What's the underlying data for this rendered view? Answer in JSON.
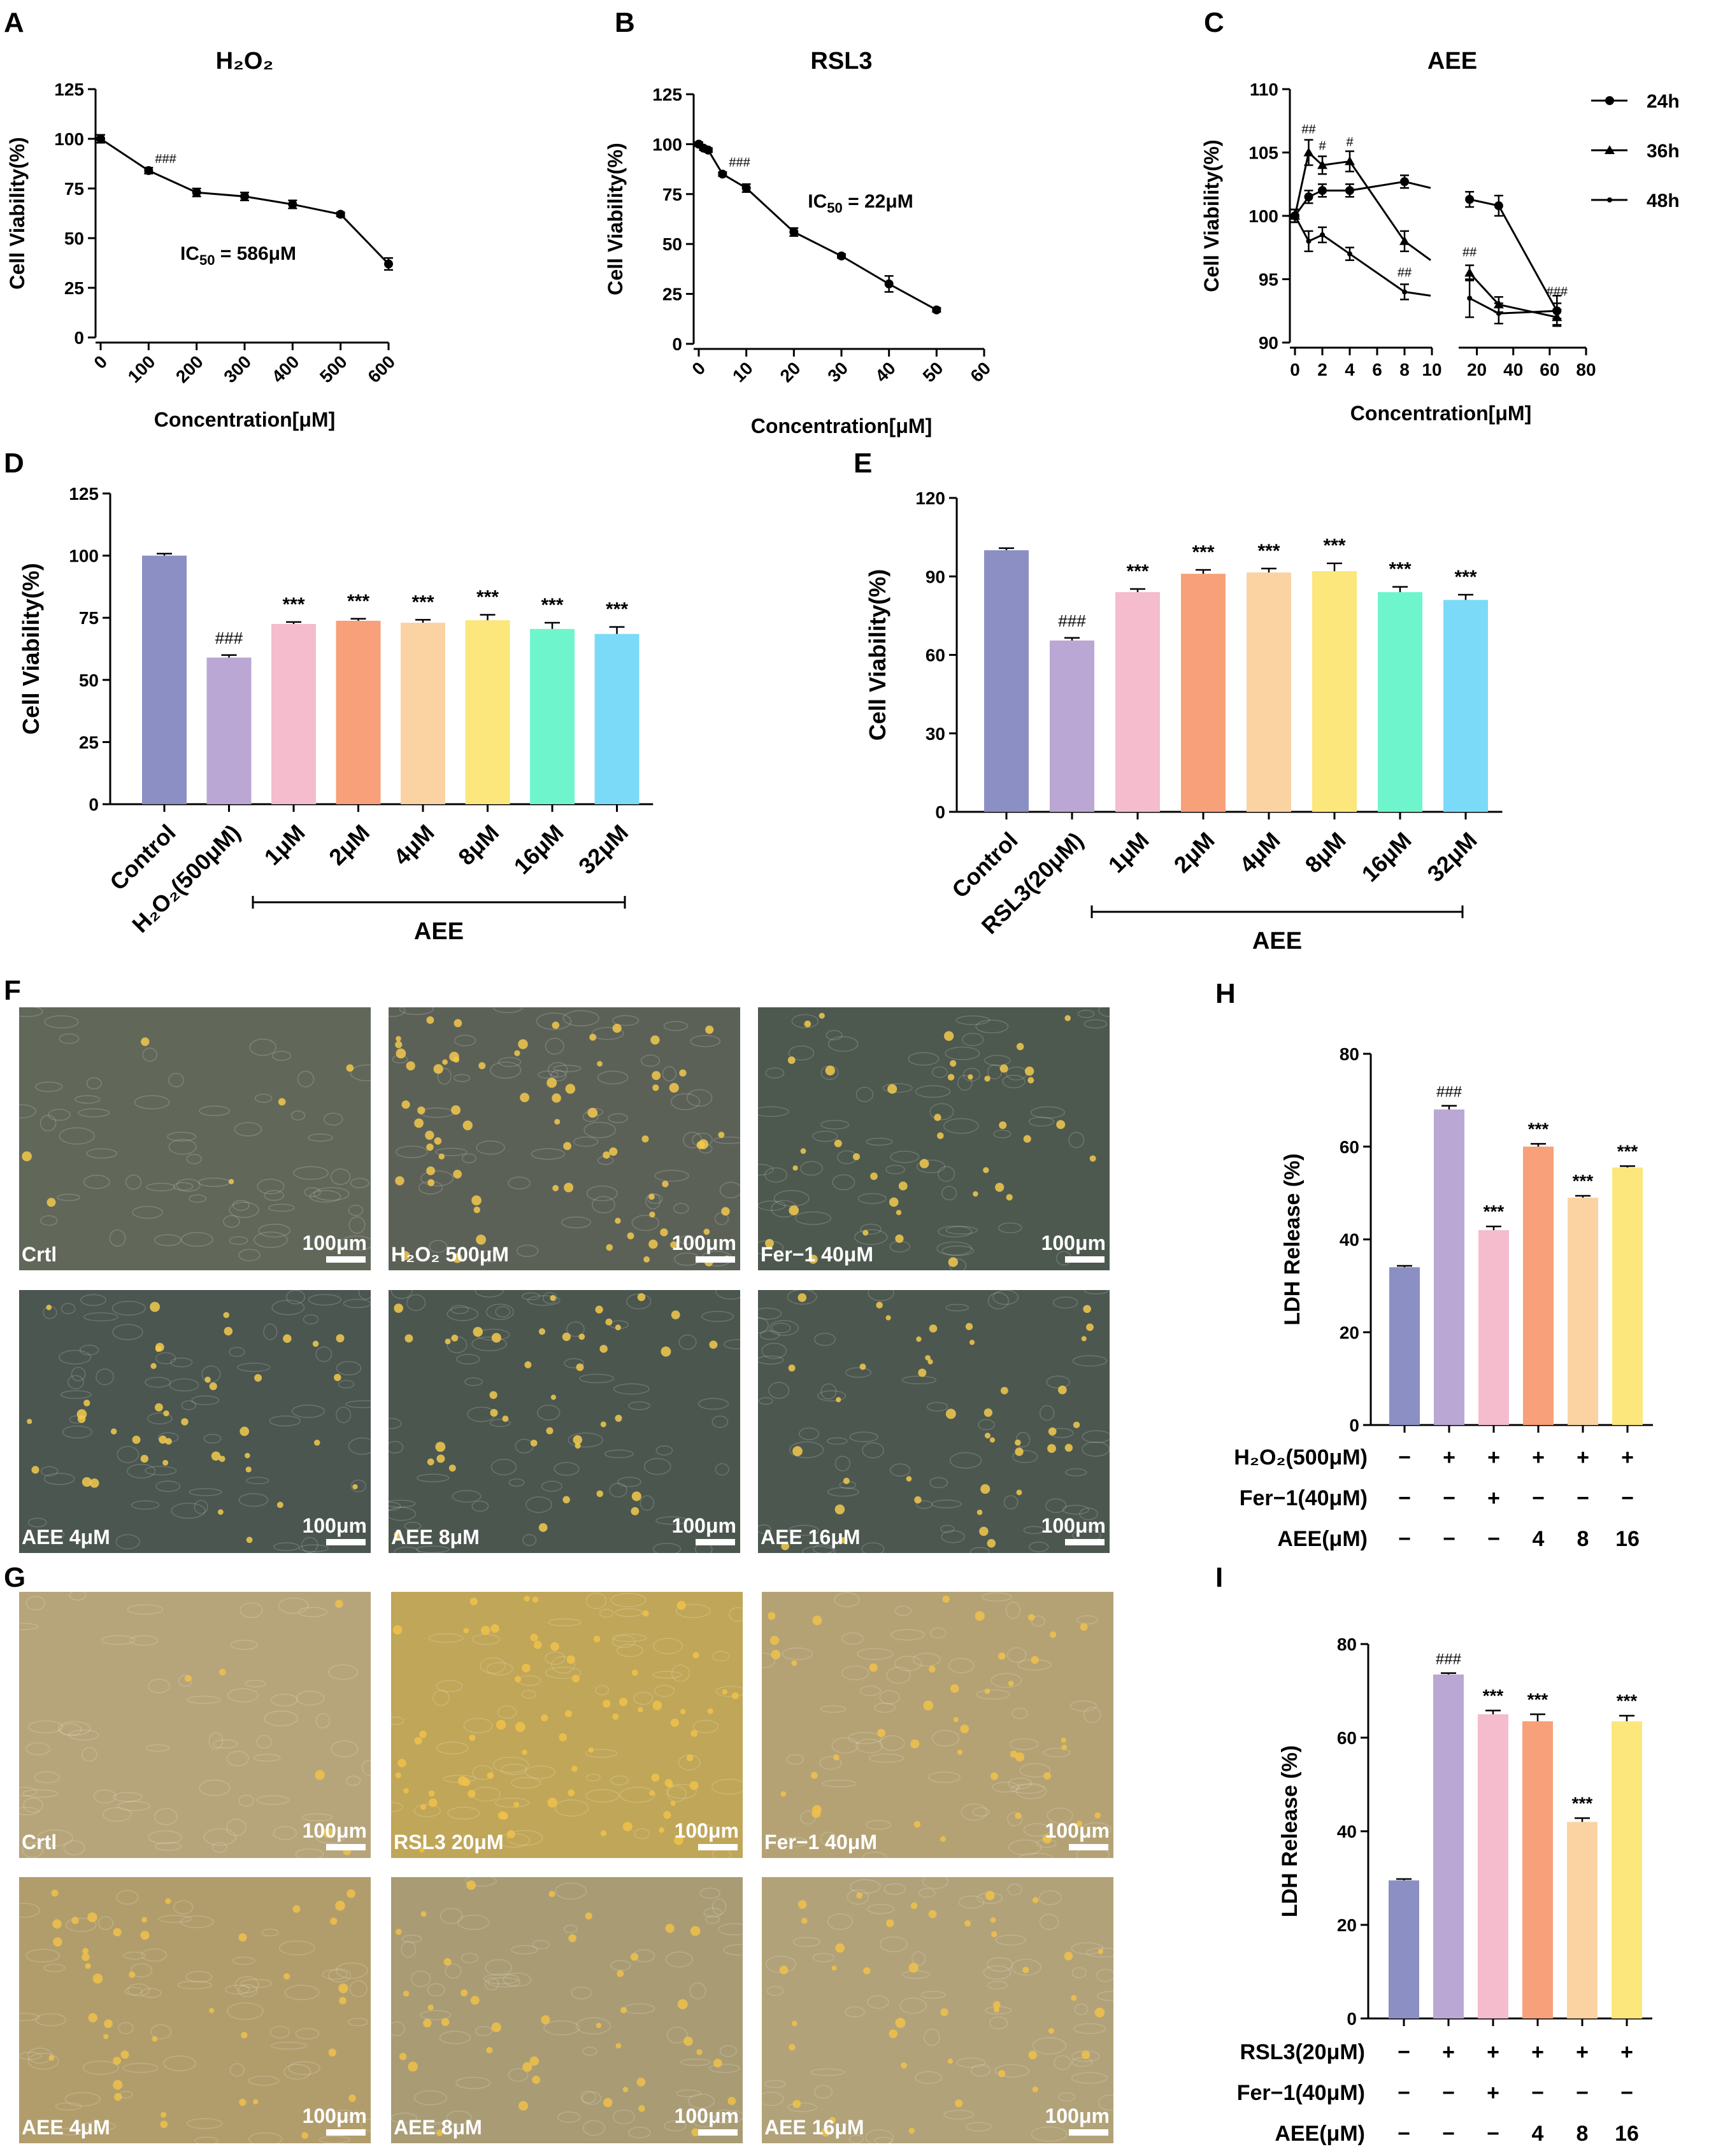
{
  "panels": {
    "A": "A",
    "B": "B",
    "C": "C",
    "D": "D",
    "E": "E",
    "F": "F",
    "G": "G",
    "H": "H",
    "I": "I"
  },
  "chart_data": [
    {
      "id": "A",
      "type": "line",
      "title": "H₂O₂",
      "xlabel": "Concentration[μM]",
      "ylabel": "Cell Viability(%)",
      "x": [
        0,
        100,
        200,
        300,
        400,
        500,
        600
      ],
      "y": [
        100,
        84,
        73,
        71,
        67,
        62,
        37
      ],
      "err": [
        2,
        1.5,
        2,
        2,
        2,
        1,
        3
      ],
      "xlim": [
        0,
        600
      ],
      "ylim": [
        0,
        125
      ],
      "xticks": [
        "0",
        "100",
        "200",
        "300",
        "400",
        "500",
        "600"
      ],
      "yticks": [
        "0",
        "25",
        "50",
        "75",
        "100",
        "125"
      ],
      "annotation": {
        "text": "IC",
        "sub": "50",
        "rest": " = 586μM"
      },
      "sig": {
        "x": 100,
        "label": "###"
      }
    },
    {
      "id": "B",
      "type": "line",
      "title": "RSL3",
      "xlabel": "Concentration[μM]",
      "ylabel": "Cell Viability(%)",
      "x": [
        0,
        1,
        2,
        5,
        10,
        20,
        30,
        40,
        50
      ],
      "y": [
        100,
        98,
        97,
        85,
        78,
        56,
        44,
        30,
        17
      ],
      "err": [
        1,
        1,
        1,
        1,
        2,
        2,
        1,
        4,
        1
      ],
      "xlim": [
        0,
        60
      ],
      "ylim": [
        0,
        125
      ],
      "xticks": [
        "0",
        "10",
        "20",
        "30",
        "40",
        "50",
        "60"
      ],
      "yticks": [
        "0",
        "25",
        "50",
        "75",
        "100",
        "125"
      ],
      "annotation": {
        "text": "IC",
        "sub": "50",
        "rest": " = 22μM"
      },
      "sig": {
        "x": 5,
        "label": "###"
      }
    },
    {
      "id": "C",
      "type": "line",
      "title": "AEE",
      "xlabel": "Concentration[μM]",
      "ylabel": "Cell Viability(%)",
      "ylim": [
        90,
        110
      ],
      "yticks": [
        "90",
        "95",
        "100",
        "105",
        "110"
      ],
      "xticks_left": [
        "0",
        "2",
        "4",
        "6",
        "8",
        "10"
      ],
      "xticks_right": [
        "20",
        "40",
        "60",
        "80"
      ],
      "series": [
        {
          "name": "24h",
          "marker": "circle",
          "x": [
            0,
            1,
            2,
            4,
            8,
            16,
            32,
            64
          ],
          "y": [
            100,
            101.5,
            102,
            102,
            102.7,
            101.3,
            100.8,
            92.5
          ],
          "err": [
            0.5,
            0.5,
            0.5,
            0.5,
            0.5,
            0.6,
            0.8,
            0.6
          ]
        },
        {
          "name": "36h",
          "marker": "triangle",
          "x": [
            0,
            1,
            2,
            4,
            8,
            16,
            32,
            64
          ],
          "y": [
            100,
            105,
            104,
            104.3,
            98,
            95.5,
            93,
            92
          ],
          "err": [
            0.5,
            1,
            0.7,
            0.8,
            0.8,
            0.6,
            0.6,
            0.6
          ]
        },
        {
          "name": "48h",
          "marker": "dot",
          "x": [
            0,
            1,
            2,
            4,
            8,
            16,
            32,
            64
          ],
          "y": [
            100,
            98,
            98.5,
            97,
            94,
            93.5,
            92.3,
            92.5
          ],
          "err": [
            0.5,
            0.8,
            0.6,
            0.5,
            0.6,
            1.5,
            0.8,
            1.2
          ]
        }
      ],
      "sig_labels": [
        {
          "x": 1,
          "y": 106.5,
          "label": "##"
        },
        {
          "x": 2,
          "y": 105.2,
          "label": "#"
        },
        {
          "x": 4,
          "y": 105.5,
          "label": "#"
        },
        {
          "x": 8,
          "y": 95.2,
          "label": "##"
        },
        {
          "x": 16,
          "y": 96.8,
          "label": "##"
        },
        {
          "x": 64,
          "y": 93.7,
          "label": "###"
        }
      ]
    },
    {
      "id": "D",
      "type": "bar",
      "ylabel": "Cell Viability(%)",
      "ylim": [
        0,
        125
      ],
      "yticks": [
        "0",
        "25",
        "50",
        "75",
        "100",
        "125"
      ],
      "categories": [
        "Control",
        "H₂O₂(500μM)",
        "1μM",
        "2μM",
        "4μM",
        "8μM",
        "16μM",
        "32μM"
      ],
      "values": [
        100,
        59,
        72.5,
        73.8,
        73,
        74,
        70.5,
        68.5
      ],
      "err": [
        0.8,
        1,
        0.8,
        0.8,
        1.2,
        2.2,
        2.5,
        2.8
      ],
      "colors": [
        "#8b8fc3",
        "#bba7d3",
        "#f4bccc",
        "#f7a079",
        "#fbd3a3",
        "#fbe77b",
        "#6ff5cc",
        "#7cdaf9"
      ],
      "sig": [
        "",
        "###",
        "***",
        "***",
        "***",
        "***",
        "***",
        "***"
      ],
      "group_label": "AEE"
    },
    {
      "id": "E",
      "type": "bar",
      "ylabel": "Cell Viability(%)",
      "ylim": [
        0,
        120
      ],
      "yticks": [
        "0",
        "30",
        "60",
        "90",
        "120"
      ],
      "categories": [
        "Control",
        "RSL3(20μM)",
        "1μM",
        "2μM",
        "4μM",
        "8μM",
        "16μM",
        "32μM"
      ],
      "values": [
        100,
        65.5,
        84,
        91,
        91.5,
        92,
        84,
        81
      ],
      "err": [
        0.8,
        1,
        1.2,
        1.5,
        1.5,
        3,
        2,
        2
      ],
      "colors": [
        "#8b8fc3",
        "#bba7d3",
        "#f4bccc",
        "#f7a079",
        "#fbd3a3",
        "#fbe77b",
        "#6ff5cc",
        "#7cdaf9"
      ],
      "sig": [
        "",
        "###",
        "***",
        "***",
        "***",
        "***",
        "***",
        "***"
      ],
      "group_label": "AEE"
    },
    {
      "id": "H",
      "type": "bar",
      "ylabel": "LDH Release (%)",
      "ylim": [
        0,
        80
      ],
      "yticks": [
        "0",
        "20",
        "40",
        "60",
        "80"
      ],
      "values": [
        34,
        68,
        42,
        60,
        49,
        55.5
      ],
      "err": [
        0.3,
        0.8,
        0.8,
        0.6,
        0.4,
        0.3
      ],
      "colors": [
        "#8b8fc3",
        "#bba7d3",
        "#f4bccc",
        "#f7a079",
        "#fbd3a3",
        "#fbe77b"
      ],
      "sig": [
        "",
        "###",
        "***",
        "***",
        "***",
        "***"
      ],
      "rows": [
        {
          "label": "H₂O₂(500μM)",
          "cells": [
            "−",
            "+",
            "+",
            "+",
            "+",
            "+"
          ]
        },
        {
          "label": "Fer−1(40μM)",
          "cells": [
            "−",
            "−",
            "+",
            "−",
            "−",
            "−"
          ]
        },
        {
          "label": "AEE(μM)",
          "cells": [
            "−",
            "−",
            "−",
            "4",
            "8",
            "16"
          ]
        }
      ]
    },
    {
      "id": "I",
      "type": "bar",
      "ylabel": "LDH Release (%)",
      "ylim": [
        0,
        80
      ],
      "yticks": [
        "0",
        "20",
        "40",
        "60",
        "80"
      ],
      "values": [
        29.5,
        73.5,
        65,
        63.5,
        42,
        63.5
      ],
      "err": [
        0.3,
        0.3,
        0.8,
        1.5,
        0.8,
        1.2
      ],
      "colors": [
        "#8b8fc3",
        "#bba7d3",
        "#f4bccc",
        "#f7a079",
        "#fbd3a3",
        "#fbe77b"
      ],
      "sig": [
        "",
        "###",
        "***",
        "***",
        "***",
        "***"
      ],
      "rows": [
        {
          "label": "RSL3(20μM)",
          "cells": [
            "−",
            "+",
            "+",
            "+",
            "+",
            "+"
          ]
        },
        {
          "label": "Fer−1(40μM)",
          "cells": [
            "−",
            "−",
            "+",
            "−",
            "−",
            "−"
          ]
        },
        {
          "label": "AEE(μM)",
          "cells": [
            "−",
            "−",
            "−",
            "4",
            "8",
            "16"
          ]
        }
      ]
    }
  ],
  "micrographs": {
    "F": {
      "scale": "100μm",
      "images": [
        {
          "label": "Crtl",
          "tone": "#61685a"
        },
        {
          "label": "H₂O₂ 500μM",
          "tone": "#5c6158"
        },
        {
          "label": "Fer−1 40μM",
          "tone": "#4d584f"
        },
        {
          "label": "AEE 4μM",
          "tone": "#4a564f"
        },
        {
          "label": "AEE 8μM",
          "tone": "#4b564f"
        },
        {
          "label": "AEE 16μM",
          "tone": "#4c5750"
        }
      ]
    },
    "G": {
      "scale": "100μm",
      "images": [
        {
          "label": "Crtl",
          "tone": "#b6a57a"
        },
        {
          "label": "RSL3 20μM",
          "tone": "#c0a658"
        },
        {
          "label": "Fer−1 40μM",
          "tone": "#b4a275"
        },
        {
          "label": "AEE 4μM",
          "tone": "#b19d6c"
        },
        {
          "label": "AEE 8μM",
          "tone": "#a99c74"
        },
        {
          "label": "AEE 16μM",
          "tone": "#b2a279"
        }
      ]
    }
  }
}
